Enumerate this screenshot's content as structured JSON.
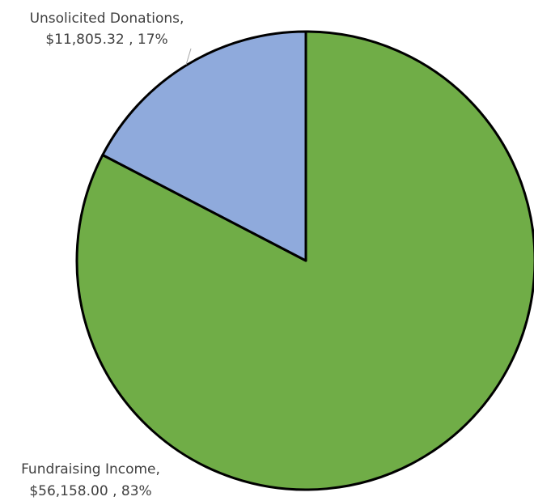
{
  "chart_data": {
    "type": "pie",
    "title": "",
    "start_angle_deg": 0,
    "direction": "clockwise",
    "slices": [
      {
        "category": "Fundraising Income",
        "value": 56158.0,
        "value_label": "$56,158.00",
        "percent_label": "83%",
        "color": "#70AD47"
      },
      {
        "category": "Unsolicited Donations",
        "value": 11805.32,
        "value_label": "$11,805.32",
        "percent_label": "17%",
        "color": "#8FAADC"
      }
    ],
    "outline_color": "#000000",
    "label_color": "#404040",
    "leader_line_color": "#A6A6A6"
  }
}
